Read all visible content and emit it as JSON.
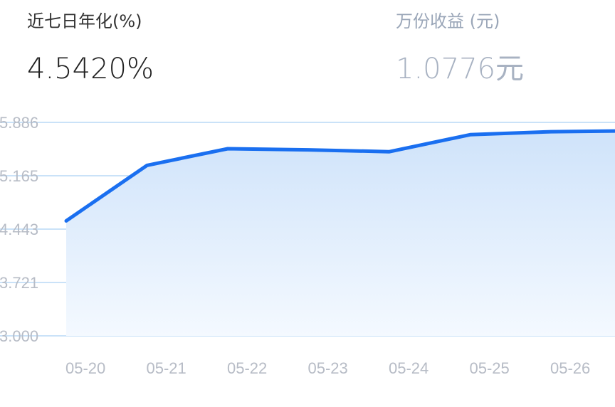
{
  "header": {
    "yield_label": "近七日年化(%)",
    "yield_value": "4.5420%",
    "income_label": "万份收益 (元)",
    "income_value": "1.0776元"
  },
  "colors": {
    "line": "#1a6ff0",
    "area_top": "#cfe3fa",
    "area_bottom": "#f4f9ff",
    "grid": "#b9d8f5",
    "tick_text": "#b7bcc6"
  },
  "chart_data": {
    "type": "area",
    "categories": [
      "05-20",
      "05-21",
      "05-22",
      "05-23",
      "05-24",
      "05-25",
      "05-26"
    ],
    "values": [
      4.555,
      5.305,
      5.53,
      5.515,
      5.49,
      5.72,
      5.76
    ],
    "title": "",
    "xlabel": "",
    "ylabel": "",
    "ylim": [
      3.0,
      5.886
    ],
    "yticks": [
      "3.000",
      "3.721",
      "4.443",
      "5.165",
      "5.886"
    ],
    "grid": true,
    "legend": "none"
  }
}
